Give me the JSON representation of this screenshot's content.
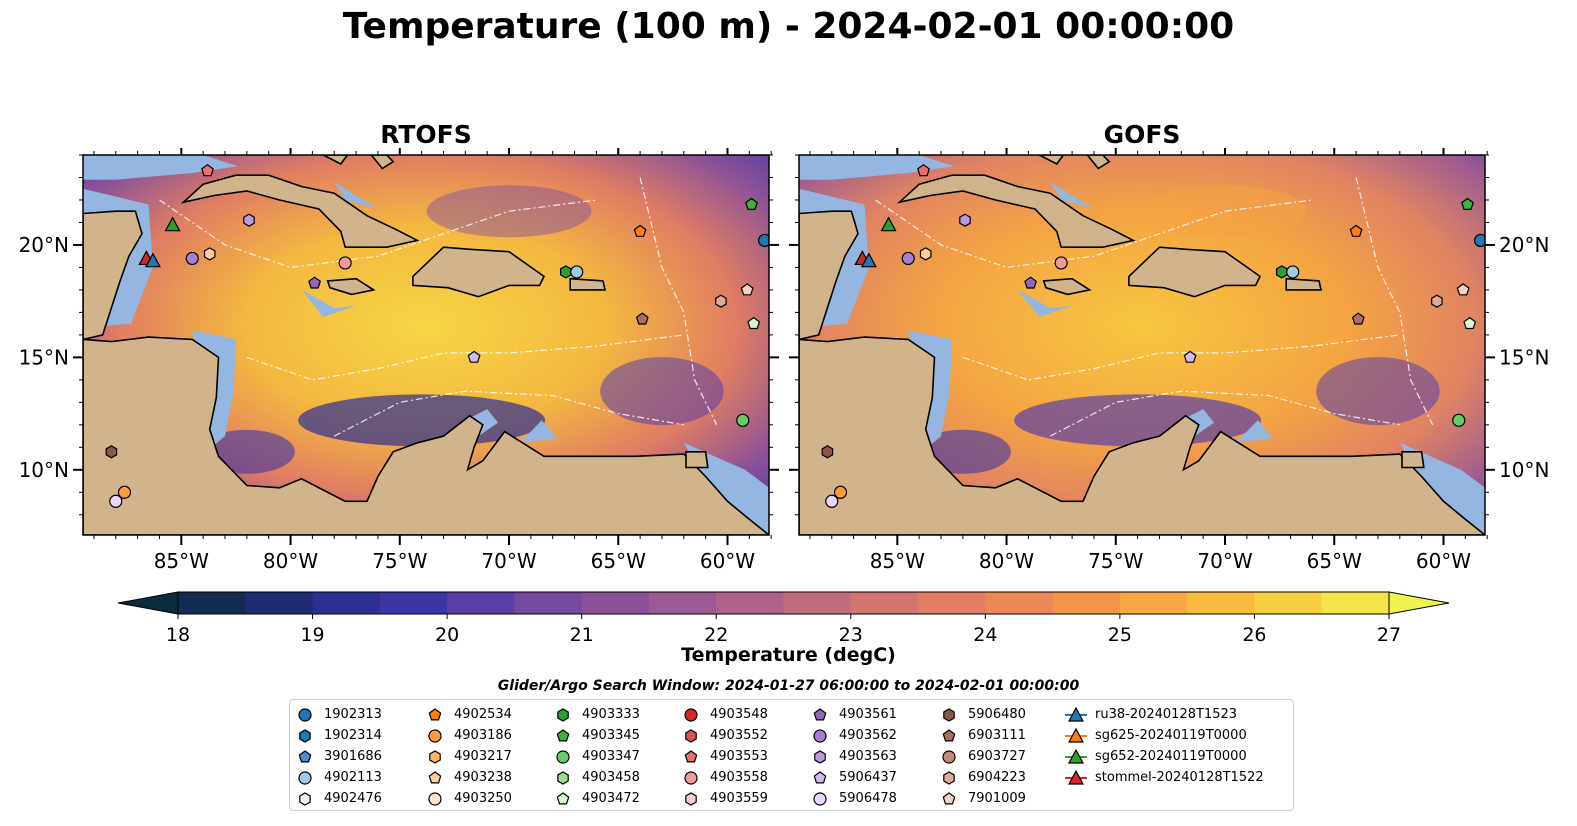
{
  "title": "Temperature (100 m) - 2024-02-01 00:00:00",
  "panels": [
    {
      "title": "RTOFS"
    },
    {
      "title": "GOFS"
    }
  ],
  "lon_ticks": [
    "85°W",
    "80°W",
    "75°W",
    "70°W",
    "65°W",
    "60°W"
  ],
  "lat_ticks": [
    "20°N",
    "15°N",
    "10°N"
  ],
  "colors": {
    "land": "#d2b48c",
    "shelf": "#94b6e0",
    "coast": "#000000"
  },
  "colorbar": {
    "label": "Temperature (degC)",
    "ticks": [
      "18",
      "19",
      "20",
      "21",
      "22",
      "23",
      "24",
      "25",
      "26",
      "27"
    ],
    "colors": [
      "#0b2a3c",
      "#132a52",
      "#1f2c72",
      "#2d2f93",
      "#3d33a3",
      "#5a3ea6",
      "#744a9f",
      "#8a5199",
      "#9c5a92",
      "#ae628a",
      "#c06b7e",
      "#d27470",
      "#e07d63",
      "#ec8855",
      "#f39548",
      "#f7a642",
      "#f8bb3d",
      "#f6d03f",
      "#f3e44a",
      "#f0f34f"
    ]
  },
  "chart_data": {
    "type": "map",
    "variable": "Temperature (100 m)",
    "units": "degC",
    "time": "2024-02-01 00:00:00",
    "extent_lon": [
      -89,
      -58
    ],
    "extent_lat": [
      7,
      24
    ],
    "colorbar_range": [
      18,
      27
    ],
    "panels": [
      "RTOFS",
      "GOFS"
    ]
  },
  "legend": {
    "title": "Glider/Argo Search Window: 2024-01-27 06:00:00 to 2024-02-01 00:00:00",
    "columns": [
      [
        {
          "label": "1902313",
          "marker": "circle",
          "color": "#1f77b4"
        },
        {
          "label": "1902314",
          "marker": "hexagon",
          "color": "#1f77b4"
        },
        {
          "label": "3901686",
          "marker": "pentagon",
          "color": "#4a8fd0"
        },
        {
          "label": "4902113",
          "marker": "circle",
          "color": "#9ecae9"
        },
        {
          "label": "4902476",
          "marker": "hexagon",
          "color": "#e4f0fa"
        }
      ],
      [
        {
          "label": "4902534",
          "marker": "pentagon",
          "color": "#ff7f0e"
        },
        {
          "label": "4903186",
          "marker": "circle",
          "color": "#ff9a3c"
        },
        {
          "label": "4903217",
          "marker": "hexagon",
          "color": "#ffb366"
        },
        {
          "label": "4903238",
          "marker": "pentagon",
          "color": "#ffcc99"
        },
        {
          "label": "4903250",
          "marker": "circle",
          "color": "#ffe6cc"
        }
      ],
      [
        {
          "label": "4903333",
          "marker": "hexagon",
          "color": "#2ca02c"
        },
        {
          "label": "4903345",
          "marker": "pentagon",
          "color": "#3cb43c"
        },
        {
          "label": "4903347",
          "marker": "circle",
          "color": "#66cc66"
        },
        {
          "label": "4903458",
          "marker": "hexagon",
          "color": "#98df8a"
        },
        {
          "label": "4903472",
          "marker": "pentagon",
          "color": "#d9f5d0"
        }
      ],
      [
        {
          "label": "4903548",
          "marker": "circle",
          "color": "#d62728"
        },
        {
          "label": "4903552",
          "marker": "hexagon",
          "color": "#e05050"
        },
        {
          "label": "4903553",
          "marker": "pentagon",
          "color": "#ea7070"
        },
        {
          "label": "4903558",
          "marker": "circle",
          "color": "#f29a9a"
        },
        {
          "label": "4903559",
          "marker": "hexagon",
          "color": "#f9cccc"
        }
      ],
      [
        {
          "label": "4903561",
          "marker": "pentagon",
          "color": "#9467bd"
        },
        {
          "label": "4903562",
          "marker": "circle",
          "color": "#a77fd0"
        },
        {
          "label": "4903563",
          "marker": "hexagon",
          "color": "#bb9ae0"
        },
        {
          "label": "5906437",
          "marker": "pentagon",
          "color": "#d2b9ef"
        },
        {
          "label": "5906478",
          "marker": "circle",
          "color": "#ead5fb"
        }
      ],
      [
        {
          "label": "5906480",
          "marker": "hexagon",
          "color": "#8c564b"
        },
        {
          "label": "6903111",
          "marker": "pentagon",
          "color": "#a96f62"
        },
        {
          "label": "6903727",
          "marker": "circle",
          "color": "#c38a7c"
        },
        {
          "label": "6904223",
          "marker": "hexagon",
          "color": "#dcaa9c"
        },
        {
          "label": "7901009",
          "marker": "pentagon",
          "color": "#f3d3c8"
        }
      ],
      [
        {
          "label": "ru38-20240128T1523",
          "marker": "triangle",
          "color": "#1f77b4"
        },
        {
          "label": "sg625-20240119T0000",
          "marker": "triangle",
          "color": "#ff7f0e"
        },
        {
          "label": "sg652-20240119T0000",
          "marker": "triangle",
          "color": "#2ca02c"
        },
        {
          "label": "stommel-20240128T1522",
          "marker": "triangle",
          "color": "#d62728"
        }
      ]
    ]
  }
}
